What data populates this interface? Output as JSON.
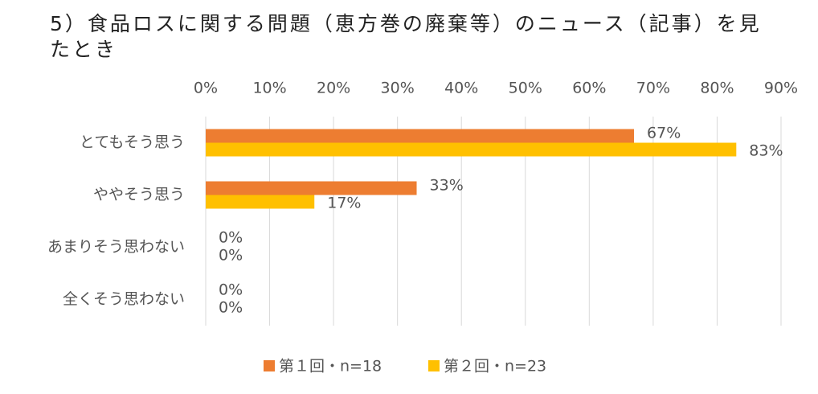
{
  "chart_data": {
    "type": "hbar",
    "title": "5）食品ロスに関する問題（恵方巻の廃棄等）のニュース（記事）を見たとき",
    "categories": [
      "とてもそう思う",
      "ややそう思う",
      "あまりそう思わない",
      "全くそう思わない"
    ],
    "series": [
      {
        "name": "第１回・n=18",
        "color": "#ED7D31",
        "values": [
          67,
          33,
          0,
          0
        ],
        "value_labels": [
          "67%",
          "33%",
          "0%",
          "0%"
        ]
      },
      {
        "name": "第２回・n=23",
        "color": "#FFC000",
        "values": [
          83,
          17,
          0,
          0
        ],
        "value_labels": [
          "83%",
          "17%",
          "0%",
          "0%"
        ]
      }
    ],
    "xlim": [
      0,
      90
    ],
    "xticks": [
      {
        "value": 0,
        "label": "0%"
      },
      {
        "value": 10,
        "label": "10%"
      },
      {
        "value": 20,
        "label": "20%"
      },
      {
        "value": 30,
        "label": "30%"
      },
      {
        "value": 40,
        "label": "40%"
      },
      {
        "value": 50,
        "label": "50%"
      },
      {
        "value": 60,
        "label": "60%"
      },
      {
        "value": 70,
        "label": "70%"
      },
      {
        "value": 80,
        "label": "80%"
      },
      {
        "value": 90,
        "label": "90%"
      }
    ],
    "grid": true,
    "legend": "bottom"
  }
}
